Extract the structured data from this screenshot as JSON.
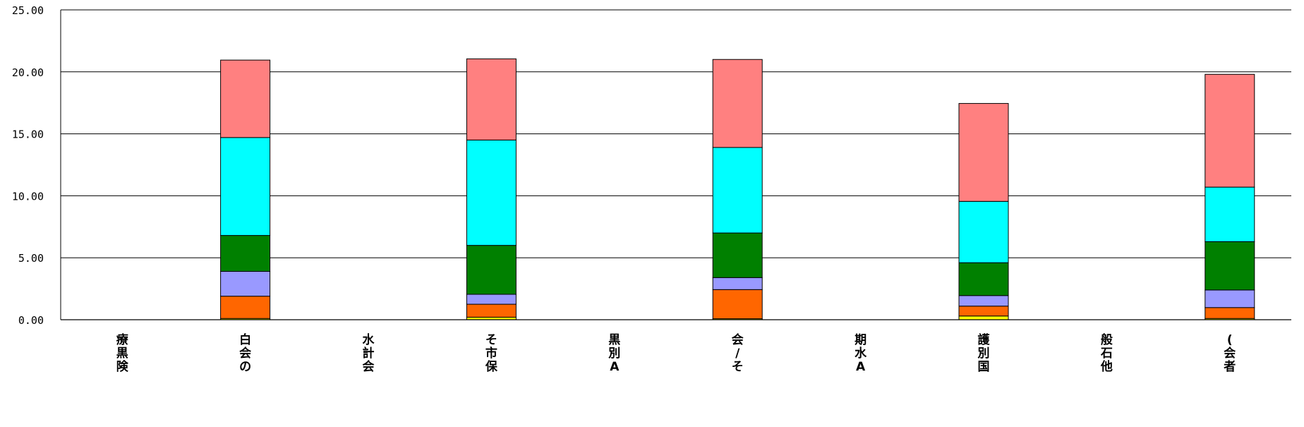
{
  "chart_data": {
    "type": "bar",
    "stacked": true,
    "categories": [
      [
        "療",
        "黒",
        "険"
      ],
      [
        "白",
        "会",
        "の"
      ],
      [
        "水",
        "計",
        "会"
      ],
      [
        "そ",
        "市",
        "保"
      ],
      [
        "黒",
        "別",
        "A"
      ],
      [
        "会",
        "/",
        "そ"
      ],
      [
        "期",
        "水",
        "A"
      ],
      [
        "護",
        "別",
        "国"
      ],
      [
        "般",
        "石",
        "他"
      ],
      [
        "(",
        "会",
        "者"
      ]
    ],
    "yticks": [
      "0.00",
      "5.00",
      "10.00",
      "15.00",
      "20.00",
      "25.00"
    ],
    "ylim": [
      0,
      25
    ],
    "grid": true,
    "legend": "none",
    "series": [
      {
        "color": "#ffff00",
        "values": [
          0,
          0.1,
          0,
          0.2,
          0,
          0.08,
          0,
          0.3,
          0,
          0.1
        ]
      },
      {
        "color": "#ff6600",
        "values": [
          0,
          1.8,
          0,
          1.05,
          0,
          2.35,
          0,
          0.8,
          0,
          0.88
        ]
      },
      {
        "color": "#9999ff",
        "values": [
          0,
          2.0,
          0,
          0.8,
          0,
          0.97,
          0,
          0.85,
          0,
          1.42
        ]
      },
      {
        "color": "#008000",
        "values": [
          0,
          2.9,
          0,
          3.95,
          0,
          3.6,
          0,
          2.65,
          0,
          3.9
        ]
      },
      {
        "color": "#00ffff",
        "values": [
          0,
          7.9,
          0,
          8.5,
          0,
          6.9,
          0,
          4.95,
          0,
          4.4
        ]
      },
      {
        "color": "#ff8080",
        "values": [
          0,
          6.25,
          0,
          6.55,
          0,
          7.1,
          0,
          7.9,
          0,
          9.1
        ]
      }
    ]
  }
}
